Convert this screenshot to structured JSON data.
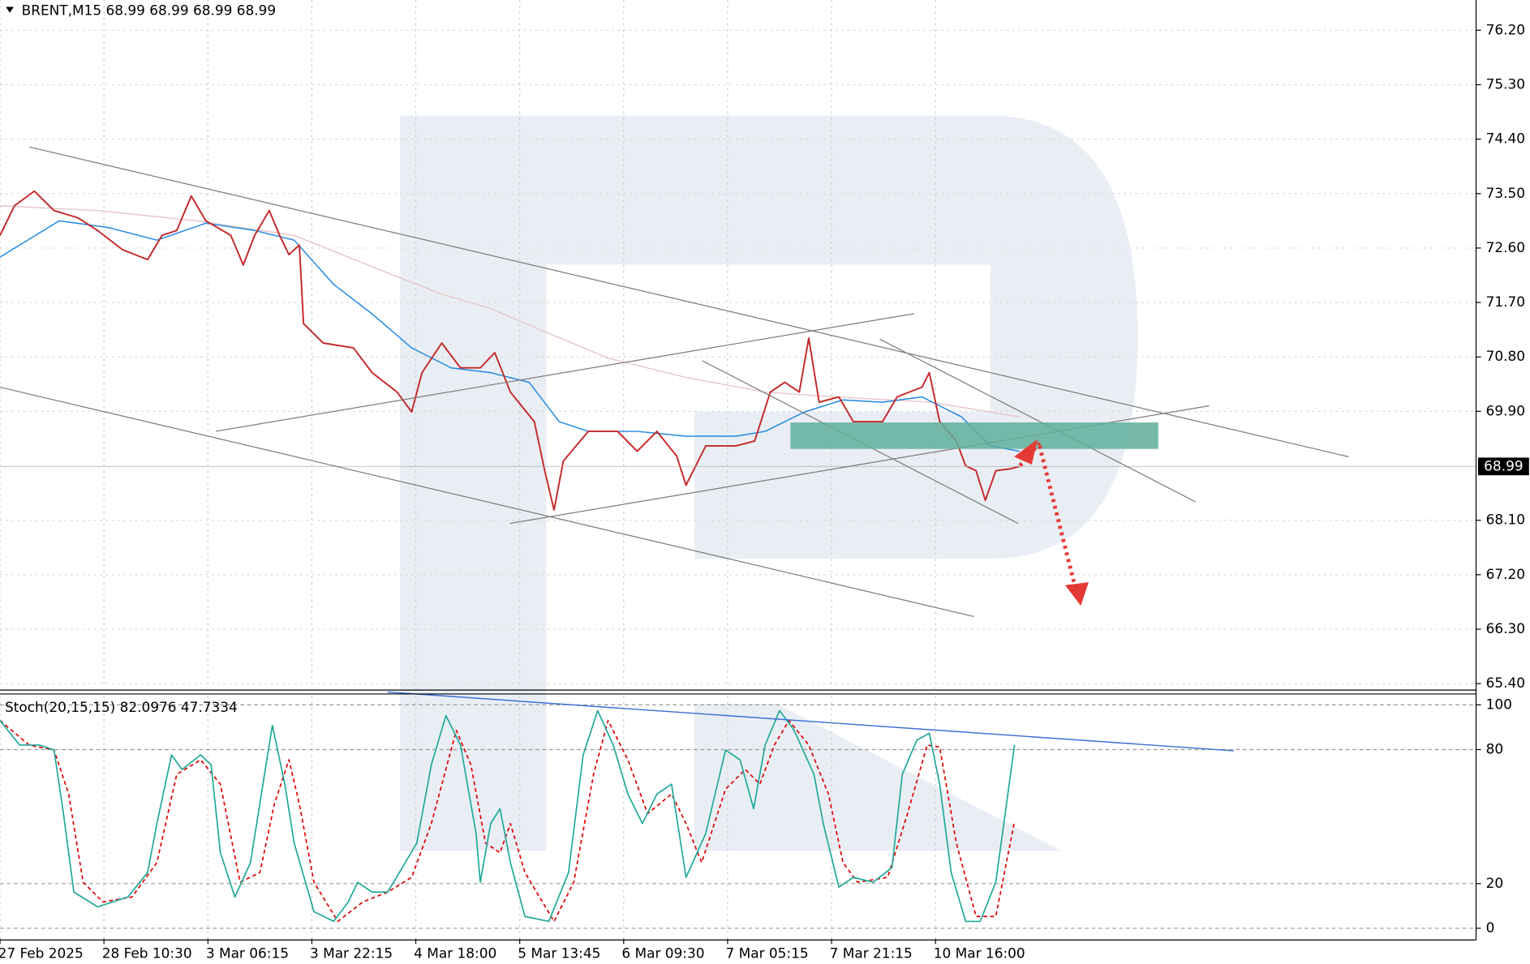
{
  "chart_data": [
    {
      "type": "line",
      "title": "BRENT,M15  68.99 68.99 68.99 68.99",
      "xlim": [
        0,
        142
      ],
      "ylim": [
        65.31,
        76.7
      ],
      "yticks": [
        {
          "value": 65.4,
          "label": "65.40"
        },
        {
          "value": 66.3,
          "label": "66.30"
        },
        {
          "value": 67.2,
          "label": "67.20"
        },
        {
          "value": 68.1,
          "label": "68.10"
        },
        {
          "value": 69.9,
          "label": "69.90"
        },
        {
          "value": 70.8,
          "label": "70.80"
        },
        {
          "value": 71.7,
          "label": "71.70"
        },
        {
          "value": 72.6,
          "label": "72.60"
        },
        {
          "value": 73.5,
          "label": "73.50"
        },
        {
          "value": 74.4,
          "label": "74.40"
        },
        {
          "value": 75.3,
          "label": "75.30"
        },
        {
          "value": 76.2,
          "label": "76.20"
        }
      ],
      "grid": true,
      "last_price": 68.99,
      "series": [
        {
          "color": "#c62828",
          "width": 1.6,
          "x": [
            0,
            1.4,
            3.3,
            5.2,
            7.5,
            9.4,
            11.8,
            14.2,
            15.6,
            17.0,
            18.4,
            19.8,
            22.2,
            23.4,
            24.5,
            25.9,
            26.9,
            27.8,
            28.8,
            29.2,
            31.1,
            34.0,
            35.8,
            38.2,
            39.6,
            40.6,
            42.5,
            44.3,
            46.2,
            47.6,
            49.1,
            51.4,
            52.4,
            53.3,
            54.2,
            56.6,
            59.4,
            61.3,
            63.2,
            65.1,
            66.0,
            67.9,
            70.8,
            72.6,
            74.1,
            75.5,
            76.9,
            77.8,
            78.8,
            80.7,
            82.1,
            84.9,
            86.3,
            88.7,
            89.4,
            90.4,
            92.0,
            92.9,
            93.9,
            94.8,
            95.8,
            97.2,
            98.1
          ],
          "values": [
            72.81,
            73.3,
            73.54,
            73.22,
            73.1,
            72.89,
            72.57,
            72.41,
            72.81,
            72.89,
            73.46,
            73.05,
            72.81,
            72.32,
            72.81,
            73.22,
            72.81,
            72.49,
            72.65,
            71.35,
            71.03,
            70.95,
            70.54,
            70.22,
            69.89,
            70.54,
            71.03,
            70.62,
            70.62,
            70.87,
            70.22,
            69.73,
            68.92,
            68.27,
            69.08,
            69.57,
            69.57,
            69.24,
            69.57,
            69.16,
            68.68,
            69.33,
            69.33,
            69.41,
            70.22,
            70.38,
            70.22,
            71.11,
            70.05,
            70.14,
            69.73,
            69.73,
            70.14,
            70.3,
            70.54,
            69.73,
            69.41,
            69.0,
            68.92,
            68.43,
            68.92,
            68.95,
            68.99
          ]
        },
        {
          "color": "#1e88e5",
          "width": 1.2,
          "x": [
            0,
            5.7,
            10.4,
            15.1,
            19.8,
            24.5,
            28.3,
            32.1,
            35.8,
            39.6,
            43.4,
            47.2,
            50.9,
            53.8,
            56.6,
            61.3,
            66.0,
            70.8,
            73.6,
            77.4,
            81.1,
            84.9,
            88.7,
            92.5,
            95.3,
            98.1
          ],
          "values": [
            72.45,
            73.05,
            72.94,
            72.73,
            73.01,
            72.89,
            72.73,
            72.0,
            71.51,
            70.95,
            70.62,
            70.54,
            70.38,
            69.73,
            69.57,
            69.57,
            69.49,
            69.49,
            69.57,
            69.89,
            70.09,
            70.05,
            70.14,
            69.81,
            69.33,
            69.24
          ]
        },
        {
          "color": "#e6c8c8",
          "width": 1.2,
          "x": [
            0,
            9.4,
            18.9,
            28.3,
            37.7,
            42.5,
            47.2,
            52.8,
            58.5,
            66.0,
            73.6,
            80.2,
            89.6,
            98.1
          ],
          "values": [
            73.3,
            73.22,
            73.05,
            72.81,
            72.16,
            71.84,
            71.6,
            71.19,
            70.78,
            70.46,
            70.22,
            70.14,
            70.05,
            69.81
          ]
        }
      ]
    },
    {
      "type": "line",
      "title": "Stoch(20,15,15) 82.0976 47.7334",
      "xlim": [
        0,
        142
      ],
      "xticks": [
        {
          "value": 0,
          "label": "27 Feb 2025"
        },
        {
          "value": 10,
          "label": "28 Feb 10:30"
        },
        {
          "value": 20,
          "label": "3 Mar 06:15"
        },
        {
          "value": 30,
          "label": "3 Mar 22:15"
        },
        {
          "value": 40,
          "label": "4 Mar 18:00"
        },
        {
          "value": 50,
          "label": "5 Mar 13:45"
        },
        {
          "value": 60,
          "label": "6 Mar 09:30"
        },
        {
          "value": 70,
          "label": "7 Mar 05:15"
        },
        {
          "value": 80,
          "label": "7 Mar 21:15"
        },
        {
          "value": 90,
          "label": "10 Mar 16:00"
        }
      ],
      "ylim": [
        -4.8,
        104
      ],
      "yticks": [
        0,
        20,
        80,
        100
      ],
      "grid": true,
      "series": [
        {
          "color": "#20a89a",
          "width": 1.4,
          "x": [
            0,
            1.9,
            3.8,
            5.2,
            6.1,
            7.1,
            9.4,
            12.3,
            14.2,
            15.1,
            16.5,
            17.5,
            19.3,
            20.3,
            21.2,
            22.6,
            24.1,
            25.3,
            26.2,
            27.4,
            28.3,
            30.2,
            32.1,
            33.5,
            34.4,
            35.8,
            37.3,
            38.7,
            40.1,
            41.5,
            42.9,
            44.3,
            45.8,
            46.2,
            47.2,
            48.1,
            49.1,
            50.5,
            52.8,
            54.7,
            56.1,
            57.5,
            59.0,
            60.4,
            61.8,
            63.2,
            64.6,
            66.0,
            67.9,
            69.8,
            71.2,
            72.5,
            73.6,
            75.0,
            76.4,
            78.3,
            79.2,
            80.7,
            82.1,
            84.0,
            85.8,
            86.8,
            88.2,
            89.4,
            90.4,
            91.5,
            92.9,
            94.3,
            95.8,
            96.7,
            97.6
          ],
          "values": [
            93.0,
            82.0,
            82.0,
            79.8,
            51.3,
            16.2,
            9.6,
            14.0,
            25.0,
            46.9,
            77.6,
            71.1,
            77.6,
            73.2,
            33.8,
            14.0,
            29.4,
            64.5,
            90.8,
            64.5,
            38.2,
            7.5,
            3.1,
            11.8,
            20.6,
            16.2,
            16.2,
            27.2,
            38.2,
            73.2,
            95.2,
            82.0,
            42.5,
            20.6,
            46.9,
            53.5,
            29.4,
            5.3,
            3.1,
            25.0,
            77.6,
            97.4,
            82.0,
            60.1,
            46.9,
            60.1,
            64.5,
            22.8,
            42.5,
            79.8,
            75.4,
            53.5,
            82.0,
            97.4,
            88.6,
            68.9,
            46.9,
            18.4,
            22.8,
            20.6,
            27.2,
            68.9,
            84.2,
            87.3,
            64.5,
            25.0,
            3.1,
            3.1,
            20.6,
            51.3,
            82.1
          ]
        },
        {
          "color": "#e00000",
          "width": 1.4,
          "style": "dashed",
          "x": [
            0,
            2.8,
            5.2,
            6.6,
            8.0,
            9.9,
            12.7,
            15.1,
            17.0,
            19.3,
            21.2,
            23.1,
            25.0,
            26.4,
            27.8,
            28.8,
            30.2,
            32.5,
            34.9,
            37.3,
            39.6,
            41.5,
            43.9,
            45.3,
            46.7,
            48.1,
            49.1,
            50.5,
            53.3,
            55.2,
            57.1,
            58.5,
            60.4,
            62.3,
            64.6,
            66.0,
            67.5,
            69.8,
            71.7,
            73.1,
            74.5,
            75.9,
            77.8,
            79.7,
            81.1,
            82.5,
            85.4,
            87.3,
            89.2,
            90.4,
            92.0,
            93.9,
            95.8,
            97.6
          ],
          "values": [
            93.0,
            82.0,
            79.8,
            60.1,
            20.6,
            11.8,
            14.0,
            29.4,
            68.9,
            75.4,
            64.5,
            20.6,
            25.0,
            55.7,
            75.4,
            55.7,
            20.6,
            3.1,
            11.8,
            16.2,
            22.8,
            46.9,
            88.6,
            73.2,
            38.2,
            33.8,
            46.9,
            25.0,
            3.1,
            20.6,
            68.9,
            93.0,
            75.4,
            51.3,
            60.1,
            46.9,
            29.4,
            62.3,
            71.1,
            64.5,
            82.0,
            93.0,
            82.0,
            60.1,
            29.4,
            20.6,
            22.8,
            51.3,
            82.0,
            81.1,
            38.2,
            5.3,
            5.3,
            47.7
          ]
        }
      ]
    }
  ]
}
